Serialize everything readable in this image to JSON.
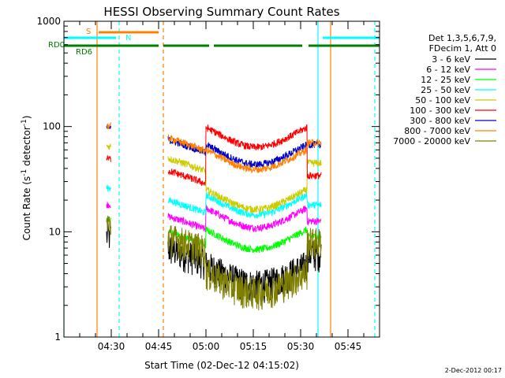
{
  "chart_data": {
    "type": "line",
    "title": "HESSI Observing Summary Count Rates",
    "xlabel": "Start Time (02-Dec-12 04:15:02)",
    "ylabel_main": "Count Rate (s",
    "ylabel_sup1": "-1",
    "ylabel_mid": " detector",
    "ylabel_sup2": "-1",
    "ylabel_end": ")",
    "y_scale": "log",
    "ylim": [
      1,
      1000
    ],
    "xlim_minutes": [
      0,
      100
    ],
    "y_ticks": [
      "1",
      "10",
      "100",
      "1000"
    ],
    "x_ticks": [
      {
        "minute": 15,
        "label": "04:30"
      },
      {
        "minute": 30,
        "label": "04:45"
      },
      {
        "minute": 45,
        "label": "05:00"
      },
      {
        "minute": 60,
        "label": "05:15"
      },
      {
        "minute": 75,
        "label": "05:30"
      },
      {
        "minute": 90,
        "label": "05:45"
      }
    ],
    "legend_header": [
      "Det 1,3,5,6,7,9,",
      "FDecim 1, Att 0"
    ],
    "legend_position": "right",
    "series": [
      {
        "name": "3 - 6 keV",
        "color": "#000000",
        "level_pre": 7,
        "level_main": 3.5
      },
      {
        "name": "6 - 12 keV",
        "color": "#ff00ff",
        "level_pre": 14,
        "level_main": 12
      },
      {
        "name": "12 - 25 keV",
        "color": "#00ff00",
        "level_pre": 10,
        "level_main": 7.5
      },
      {
        "name": "25 - 50 keV",
        "color": "#00ffff",
        "level_pre": 20,
        "level_main": 16
      },
      {
        "name": "50 - 100 keV",
        "color": "#cccc00",
        "level_pre": 50,
        "level_main": 18
      },
      {
        "name": "100 - 300 keV",
        "color": "#ff0000",
        "level_pre": 38,
        "level_main": 70
      },
      {
        "name": "300 - 800 keV",
        "color": "#0000cc",
        "level_pre": 75,
        "level_main": 48
      },
      {
        "name": "800 - 7000 keV",
        "color": "#ff8000",
        "level_pre": 78,
        "level_main": 43
      },
      {
        "name": "7000 - 20000 keV",
        "color": "#808000",
        "level_pre": 9,
        "level_main": 3
      }
    ],
    "flag_labels": {
      "S": "S",
      "N": "N",
      "RD0": "RD0",
      "RD6": "RD6"
    },
    "flag_colors": {
      "S": "#ff8000",
      "N": "#00ffff",
      "RD0": "#008000",
      "RD6": "#008000"
    },
    "flags": {
      "S": [
        [
          11,
          30
        ]
      ],
      "N": [
        [
          0,
          16.5
        ],
        [
          82,
          100
        ]
      ],
      "RD0": [
        [
          0,
          30
        ],
        [
          31.5,
          46
        ],
        [
          47.5,
          75.5
        ],
        [
          77.5,
          100
        ]
      ],
      "RD6": [
        [
          -1.5,
          0
        ]
      ]
    },
    "vlines": [
      {
        "minute": 0,
        "color": "#00ffff",
        "style": "solid"
      },
      {
        "minute": 10.5,
        "color": "#ff8000",
        "style": "solid"
      },
      {
        "minute": 17.5,
        "color": "#00ffff",
        "style": "dashed"
      },
      {
        "minute": 31.5,
        "color": "#ff8000",
        "style": "dashed"
      },
      {
        "minute": 80.5,
        "color": "#00ffff",
        "style": "solid"
      },
      {
        "minute": 84.5,
        "color": "#ff8000",
        "style": "solid"
      },
      {
        "minute": 98.5,
        "color": "#00ffff",
        "style": "dashed"
      }
    ],
    "data_intervals_minutes": [
      [
        13.5,
        15
      ],
      [
        33,
        81.5
      ]
    ],
    "timestamp": "2-Dec-2012 00:17"
  }
}
